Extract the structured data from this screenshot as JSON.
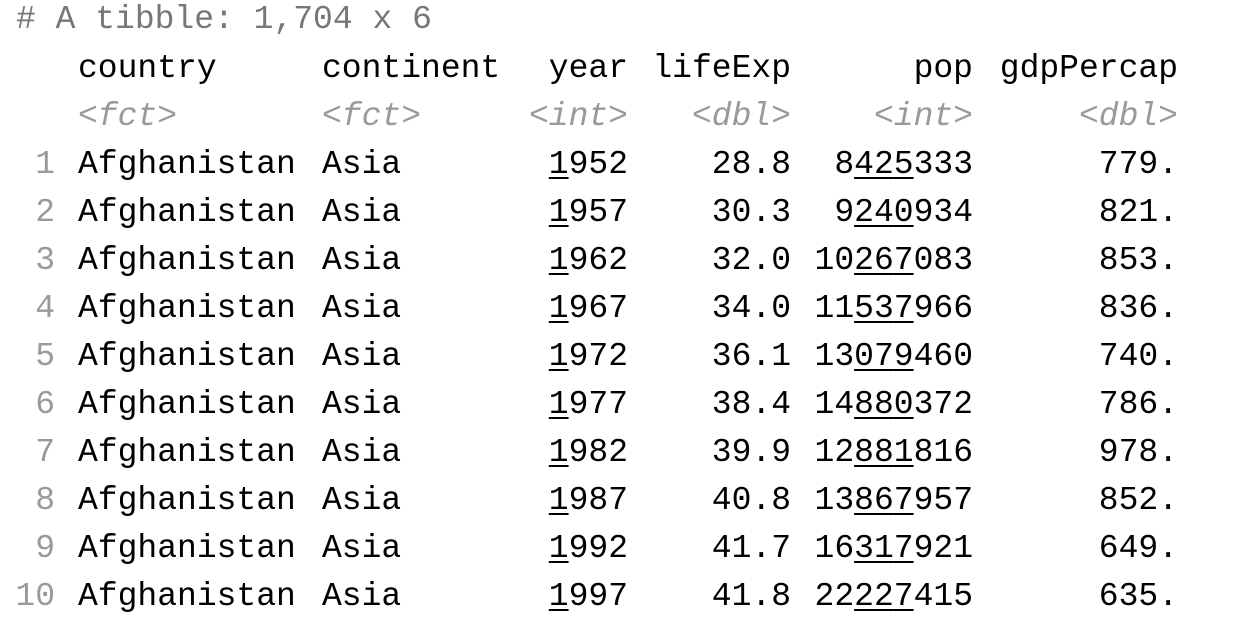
{
  "header": {
    "title": "# A tibble: 1,704 x 6"
  },
  "table": {
    "columns": [
      "country",
      "continent",
      "year",
      "lifeExp",
      "pop",
      "gdpPercap"
    ],
    "types": [
      "<fct>",
      "<fct>",
      "<int>",
      "<dbl>",
      "<int>",
      "<dbl>"
    ],
    "rows": [
      {
        "n": "1",
        "cells": [
          "Afghanistan",
          "Asia",
          "1952",
          "28.8",
          "8425333",
          "779."
        ]
      },
      {
        "n": "2",
        "cells": [
          "Afghanistan",
          "Asia",
          "1957",
          "30.3",
          "9240934",
          "821."
        ]
      },
      {
        "n": "3",
        "cells": [
          "Afghanistan",
          "Asia",
          "1962",
          "32.0",
          "10267083",
          "853."
        ]
      },
      {
        "n": "4",
        "cells": [
          "Afghanistan",
          "Asia",
          "1967",
          "34.0",
          "11537966",
          "836."
        ]
      },
      {
        "n": "5",
        "cells": [
          "Afghanistan",
          "Asia",
          "1972",
          "36.1",
          "13079460",
          "740."
        ]
      },
      {
        "n": "6",
        "cells": [
          "Afghanistan",
          "Asia",
          "1977",
          "38.4",
          "14880372",
          "786."
        ]
      },
      {
        "n": "7",
        "cells": [
          "Afghanistan",
          "Asia",
          "1982",
          "39.9",
          "12881816",
          "978."
        ]
      },
      {
        "n": "8",
        "cells": [
          "Afghanistan",
          "Asia",
          "1987",
          "40.8",
          "13867957",
          "852."
        ]
      },
      {
        "n": "9",
        "cells": [
          "Afghanistan",
          "Asia",
          "1992",
          "41.7",
          "16317921",
          "649."
        ]
      },
      {
        "n": "10",
        "cells": [
          "Afghanistan",
          "Asia",
          "1997",
          "41.8",
          "22227415",
          "635."
        ]
      }
    ]
  }
}
